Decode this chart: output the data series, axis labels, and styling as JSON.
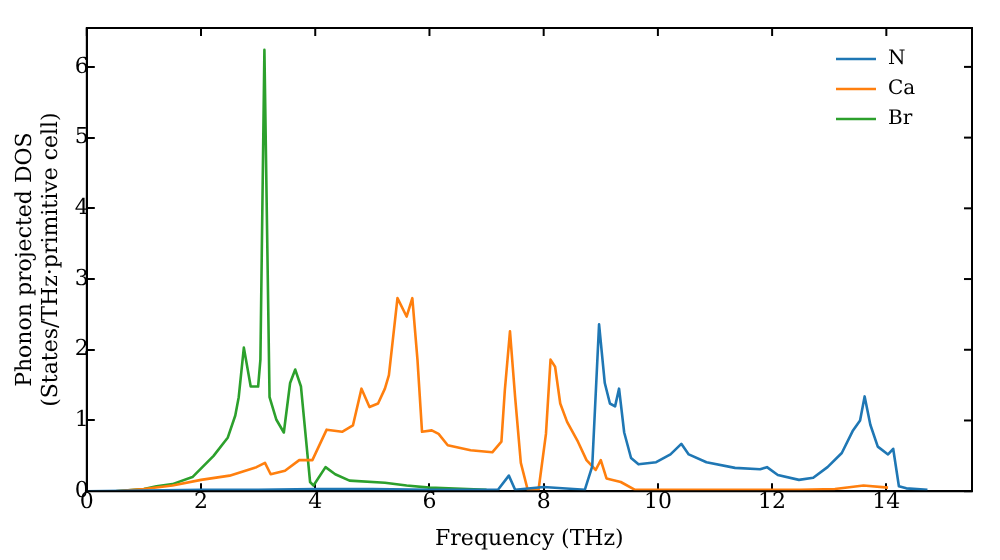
{
  "chart_data": {
    "type": "line",
    "xlabel": "Frequency (THz)",
    "ylabel": "Phonon projected DOS\n(States/THz·primitive cell)",
    "xlim": [
      0,
      15.5
    ],
    "ylim": [
      0,
      6.55
    ],
    "xticks": [
      0,
      2,
      4,
      6,
      8,
      10,
      12,
      14
    ],
    "yticks": [
      0,
      1,
      2,
      3,
      4,
      5,
      6
    ],
    "grid": false,
    "legend": "top right",
    "marker": "none",
    "line_style": "solid",
    "series": [
      {
        "name": "N",
        "color": "#1f77b4",
        "x": [
          0,
          1,
          2,
          3,
          4,
          5,
          6,
          7,
          7.2,
          7.39,
          7.5,
          8,
          8.72,
          8.85,
          8.97,
          9.07,
          9.16,
          9.25,
          9.32,
          9.41,
          9.53,
          9.66,
          9.97,
          10.22,
          10.41,
          10.54,
          10.85,
          11.35,
          11.79,
          11.91,
          12.1,
          12.47,
          12.72,
          12.97,
          13.22,
          13.41,
          13.54,
          13.62,
          13.72,
          13.85,
          14.03,
          14.12,
          14.22,
          14.35,
          14.72
        ],
        "values": [
          0,
          0.01,
          0.02,
          0.02,
          0.03,
          0.03,
          0.02,
          0.02,
          0.02,
          0.22,
          0.02,
          0.06,
          0.02,
          0.35,
          2.36,
          1.53,
          1.24,
          1.2,
          1.45,
          0.83,
          0.47,
          0.38,
          0.41,
          0.52,
          0.67,
          0.52,
          0.41,
          0.33,
          0.31,
          0.34,
          0.23,
          0.16,
          0.19,
          0.34,
          0.54,
          0.85,
          1.0,
          1.34,
          0.94,
          0.63,
          0.52,
          0.6,
          0.07,
          0.04,
          0.02
        ]
      },
      {
        "name": "Ca",
        "color": "#ff7f0e",
        "x": [
          0,
          0.5,
          1,
          1.5,
          2,
          2.5,
          2.97,
          3.12,
          3.22,
          3.47,
          3.72,
          3.95,
          4.2,
          4.47,
          4.66,
          4.81,
          4.95,
          5.1,
          5.22,
          5.29,
          5.44,
          5.6,
          5.7,
          5.79,
          5.87,
          6.04,
          6.16,
          6.32,
          6.72,
          7.1,
          7.26,
          7.32,
          7.41,
          7.5,
          7.6,
          7.72,
          7.91,
          8.04,
          8.12,
          8.2,
          8.29,
          8.41,
          8.6,
          8.75,
          8.91,
          9.0,
          9.1,
          9.35,
          9.6,
          10,
          11,
          12,
          12.5,
          13.1,
          13.6,
          14.03
        ],
        "values": [
          0,
          0,
          0.03,
          0.08,
          0.16,
          0.22,
          0.34,
          0.4,
          0.24,
          0.29,
          0.44,
          0.44,
          0.87,
          0.84,
          0.93,
          1.45,
          1.19,
          1.24,
          1.45,
          1.64,
          2.73,
          2.47,
          2.73,
          1.86,
          0.84,
          0.86,
          0.81,
          0.65,
          0.58,
          0.55,
          0.7,
          1.43,
          2.26,
          1.33,
          0.4,
          0.02,
          0.02,
          0.81,
          1.86,
          1.76,
          1.24,
          0.98,
          0.7,
          0.44,
          0.3,
          0.44,
          0.18,
          0.13,
          0.02,
          0.02,
          0.02,
          0.02,
          0.02,
          0.03,
          0.08,
          0.05
        ]
      },
      {
        "name": "Br",
        "color": "#2ca02c",
        "x": [
          0,
          0.5,
          1,
          1.22,
          1.5,
          1.85,
          2.22,
          2.47,
          2.6,
          2.66,
          2.75,
          2.87,
          3.0,
          3.04,
          3.11,
          3.2,
          3.32,
          3.45,
          3.56,
          3.65,
          3.75,
          3.91,
          3.97,
          4.18,
          4.35,
          4.6,
          5.22,
          5.6,
          6,
          7
        ],
        "values": [
          0,
          0,
          0.03,
          0.07,
          0.1,
          0.2,
          0.5,
          0.76,
          1.07,
          1.33,
          2.03,
          1.48,
          1.48,
          1.86,
          6.24,
          1.33,
          1.01,
          0.83,
          1.53,
          1.72,
          1.48,
          0.13,
          0.08,
          0.34,
          0.24,
          0.15,
          0.12,
          0.08,
          0.05,
          0.02
        ]
      }
    ]
  }
}
